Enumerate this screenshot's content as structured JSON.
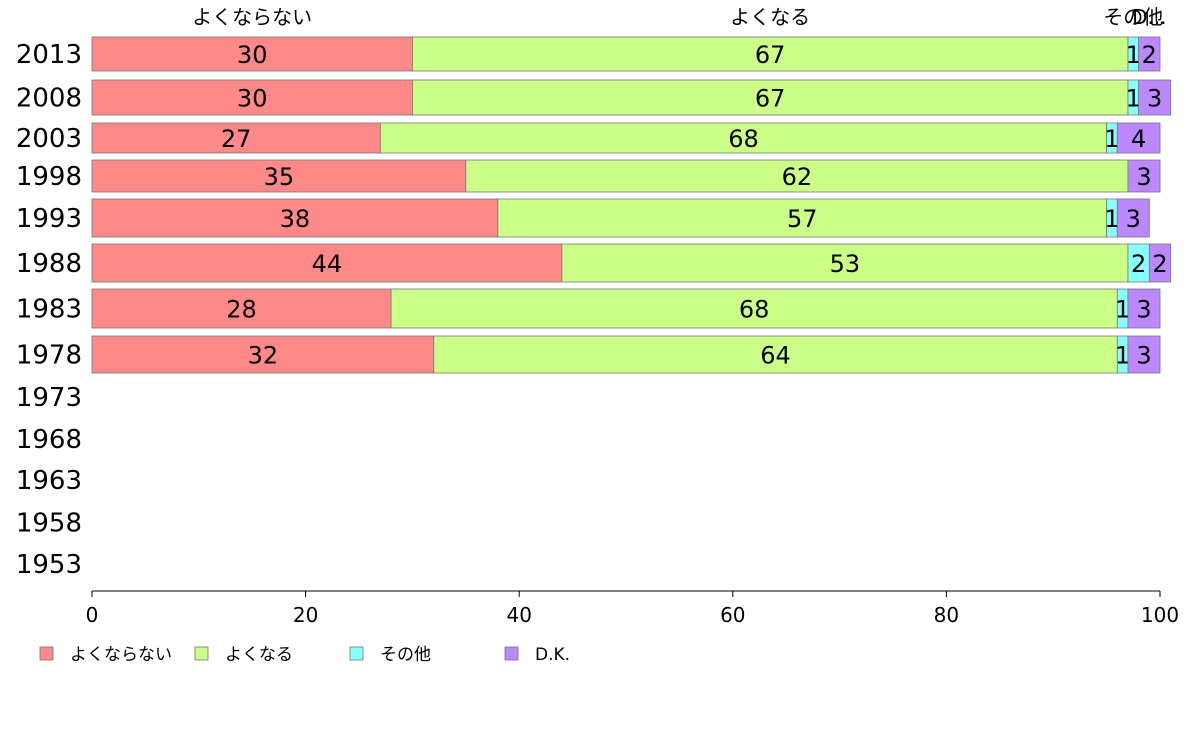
{
  "chart_data": {
    "type": "bar",
    "orientation": "horizontal",
    "stacked": true,
    "categories": [
      "2013",
      "2008",
      "2003",
      "1998",
      "1993",
      "1988",
      "1983",
      "1978",
      "1973",
      "1968",
      "1963",
      "1958",
      "1953"
    ],
    "series": [
      {
        "name": "よくならない",
        "color": "#ff8888",
        "values": [
          30,
          30,
          27,
          35,
          38,
          44,
          28,
          32,
          null,
          null,
          null,
          null,
          null
        ]
      },
      {
        "name": "よくなる",
        "color": "#ccff88",
        "values": [
          67,
          67,
          68,
          62,
          57,
          53,
          68,
          64,
          null,
          null,
          null,
          null,
          null
        ]
      },
      {
        "name": "その他",
        "color": "#88ffff",
        "values": [
          1,
          1,
          1,
          null,
          1,
          2,
          1,
          1,
          null,
          null,
          null,
          null,
          null
        ]
      },
      {
        "name": "D.K.",
        "color": "#bb88ff",
        "values": [
          2,
          3,
          4,
          3,
          3,
          2,
          3,
          3,
          null,
          null,
          null,
          null,
          null
        ]
      }
    ],
    "top_labels": [
      "よくならない",
      "よくなる",
      "その他",
      "D..."
    ],
    "xlim": [
      0,
      100
    ],
    "xticks": [
      "0",
      "20",
      "40",
      "60",
      "80",
      "100"
    ],
    "legend_position": "bottom-left",
    "grid": false
  }
}
